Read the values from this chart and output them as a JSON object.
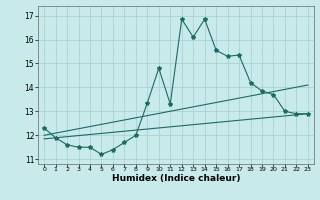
{
  "xlabel": "Humidex (Indice chaleur)",
  "ylabel": "",
  "background_color": "#c8eaea",
  "grid_color": "#a8d4d0",
  "line_color": "#1a6b63",
  "xlim": [
    -0.5,
    23.5
  ],
  "ylim": [
    10.8,
    17.4
  ],
  "yticks": [
    11,
    12,
    13,
    14,
    15,
    16,
    17
  ],
  "xticks": [
    0,
    1,
    2,
    3,
    4,
    5,
    6,
    7,
    8,
    9,
    10,
    11,
    12,
    13,
    14,
    15,
    16,
    17,
    18,
    19,
    20,
    21,
    22,
    23
  ],
  "series1_x": [
    0,
    1,
    2,
    3,
    4,
    5,
    6,
    7,
    8,
    9,
    10,
    11,
    12,
    13,
    14,
    15,
    16,
    17,
    18,
    19,
    20,
    21,
    22,
    23
  ],
  "series1_y": [
    12.3,
    11.9,
    11.6,
    11.5,
    11.5,
    11.2,
    11.4,
    11.7,
    12.0,
    13.35,
    14.8,
    13.3,
    16.85,
    16.1,
    16.85,
    15.55,
    15.3,
    15.35,
    14.2,
    13.85,
    13.7,
    13.0,
    12.9,
    12.9
  ],
  "series2_x": [
    0,
    23
  ],
  "series2_y": [
    12.0,
    14.1
  ],
  "series3_x": [
    0,
    23
  ],
  "series3_y": [
    11.85,
    12.9
  ]
}
